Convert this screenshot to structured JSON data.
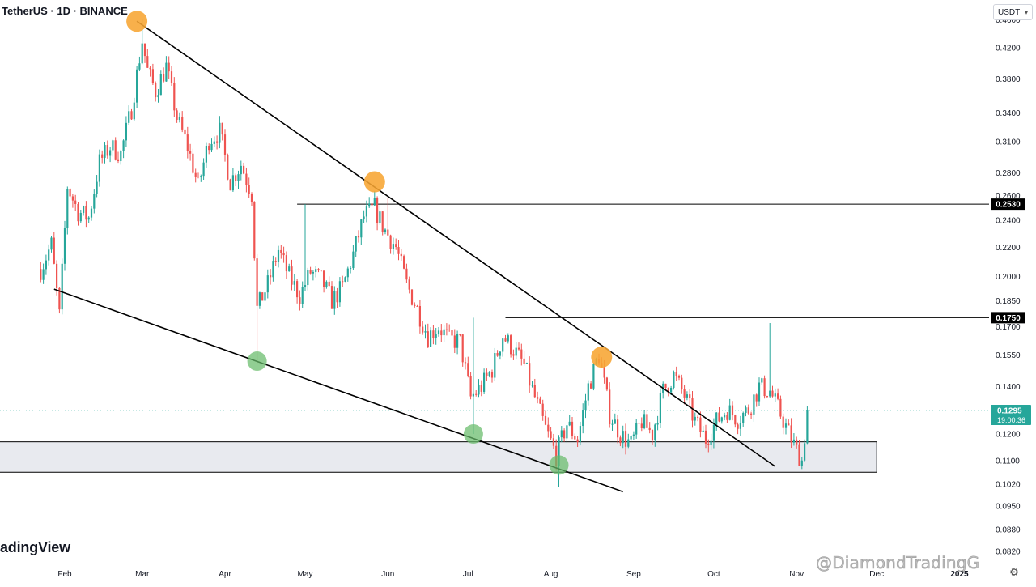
{
  "header": {
    "title": "TetherUS · 1D · BINANCE"
  },
  "currency": {
    "label": "USDT",
    "icon": "chevron-down-icon"
  },
  "logo": {
    "text": "adingView"
  },
  "watermark": {
    "text": "@DiamondTradingG"
  },
  "settings": {
    "icon": "gear-icon",
    "glyph": "⚙"
  },
  "colors": {
    "up": "#26a69a",
    "down": "#ef5350",
    "trendline": "#000000",
    "zone_fill": "#e8eaef",
    "peak_marker": "#f7a532",
    "low_marker": "#66bb6a",
    "price_tag": "#26a69a",
    "level_tag": "#000000"
  },
  "chart_data": {
    "type": "candlestick",
    "title": "TetherUS · 1D · BINANCE",
    "y_axis": {
      "scale": "log",
      "ylim": [
        0.0805,
        0.468
      ],
      "ticks": [
        "0.4600",
        "0.4200",
        "0.3800",
        "0.3400",
        "0.3100",
        "0.2800",
        "0.2600",
        "0.2400",
        "0.2200",
        "0.2000",
        "0.1850",
        "0.1700",
        "0.1550",
        "0.1400",
        "0.1200",
        "0.1100",
        "0.1020",
        "0.0950",
        "0.0880",
        "0.0820"
      ]
    },
    "x_axis": {
      "labels": [
        "Feb",
        "Mar",
        "Apr",
        "May",
        "Jun",
        "Jul",
        "Aug",
        "Sep",
        "Oct",
        "Nov",
        "Dec",
        "2025"
      ]
    },
    "close_path": [
      [
        "Jan 23",
        0.205
      ],
      [
        "Jan 27",
        0.222
      ],
      [
        "Jan 30",
        0.176
      ],
      [
        "Feb 2",
        0.268
      ],
      [
        "Feb 6",
        0.247
      ],
      [
        "Feb 10",
        0.242
      ],
      [
        "Feb 14",
        0.29
      ],
      [
        "Feb 18",
        0.305
      ],
      [
        "Feb 22",
        0.298
      ],
      [
        "Feb 26",
        0.345
      ],
      [
        "Mar 1",
        0.43
      ],
      [
        "Mar 3",
        0.39
      ],
      [
        "Mar 6",
        0.365
      ],
      [
        "Mar 10",
        0.395
      ],
      [
        "Mar 14",
        0.335
      ],
      [
        "Mar 18",
        0.305
      ],
      [
        "Mar 22",
        0.268
      ],
      [
        "Mar 26",
        0.312
      ],
      [
        "Mar 30",
        0.32
      ],
      [
        "Apr 3",
        0.272
      ],
      [
        "Apr 7",
        0.288
      ],
      [
        "Apr 11",
        0.262
      ],
      [
        "Apr 13",
        0.18
      ],
      [
        "Apr 17",
        0.195
      ],
      [
        "Apr 21",
        0.218
      ],
      [
        "Apr 25",
        0.2
      ],
      [
        "Apr 29",
        0.188
      ],
      [
        "May 3",
        0.203
      ],
      [
        "May 7",
        0.198
      ],
      [
        "May 11",
        0.185
      ],
      [
        "May 15",
        0.193
      ],
      [
        "May 19",
        0.215
      ],
      [
        "May 23",
        0.243
      ],
      [
        "May 27",
        0.25
      ],
      [
        "May 31",
        0.232
      ],
      [
        "Jun 4",
        0.22
      ],
      [
        "Jun 8",
        0.195
      ],
      [
        "Jun 12",
        0.18
      ],
      [
        "Jun 16",
        0.165
      ],
      [
        "Jun 20",
        0.17
      ],
      [
        "Jun 24",
        0.163
      ],
      [
        "Jun 28",
        0.162
      ],
      [
        "Jul 2",
        0.135
      ],
      [
        "Jul 6",
        0.14
      ],
      [
        "Jul 10",
        0.148
      ],
      [
        "Jul 14",
        0.165
      ],
      [
        "Jul 18",
        0.158
      ],
      [
        "Jul 22",
        0.15
      ],
      [
        "Jul 26",
        0.135
      ],
      [
        "Jul 30",
        0.122
      ],
      [
        "Aug 3",
        0.112
      ],
      [
        "Aug 7",
        0.124
      ],
      [
        "Aug 11",
        0.118
      ],
      [
        "Aug 15",
        0.14
      ],
      [
        "Aug 19",
        0.155
      ],
      [
        "Aug 23",
        0.128
      ],
      [
        "Aug 27",
        0.12
      ],
      [
        "Aug 31",
        0.116
      ],
      [
        "Sep 4",
        0.125
      ],
      [
        "Sep 8",
        0.12
      ],
      [
        "Sep 12",
        0.138
      ],
      [
        "Sep 16",
        0.145
      ],
      [
        "Sep 20",
        0.136
      ],
      [
        "Sep 24",
        0.125
      ],
      [
        "Sep 28",
        0.118
      ],
      [
        "Oct 2",
        0.125
      ],
      [
        "Oct 6",
        0.13
      ],
      [
        "Oct 10",
        0.126
      ],
      [
        "Oct 14",
        0.13
      ],
      [
        "Oct 18",
        0.14
      ],
      [
        "Oct 22",
        0.138
      ],
      [
        "Oct 26",
        0.128
      ],
      [
        "Oct 30",
        0.118
      ],
      [
        "Nov 3",
        0.11
      ],
      [
        "Nov 5",
        0.1295
      ]
    ],
    "wicks": [
      {
        "date": "Mar 1",
        "high": 0.462
      },
      {
        "date": "Apr 13",
        "low": 0.151
      },
      {
        "date": "May 1",
        "high": 0.253
      },
      {
        "date": "Jun 1",
        "high": 0.258
      },
      {
        "date": "Jul 3",
        "high": 0.175,
        "low": 0.12
      },
      {
        "date": "Aug 4",
        "low": 0.101
      },
      {
        "date": "Oct 22",
        "high": 0.172
      }
    ],
    "trendlines": [
      {
        "name": "descending resistance",
        "from": [
          "Feb 28",
          0.458
        ],
        "to": [
          "Oct 24",
          0.108
        ]
      },
      {
        "name": "support",
        "from": [
          "Jan 28",
          0.192
        ],
        "to": [
          "Aug 28",
          0.0995
        ]
      }
    ],
    "horizontal_levels": [
      {
        "value": 0.253,
        "label": "0.2530",
        "from": "Apr 28"
      },
      {
        "value": 0.175,
        "label": "0.1750",
        "from": "Jul 15"
      }
    ],
    "zone": {
      "top": 0.117,
      "bottom": 0.106,
      "to": "Dec 1"
    },
    "peak_markers": [
      [
        "Feb 28",
        0.458
      ],
      [
        "May 27",
        0.272
      ],
      [
        "Aug 20",
        0.154
      ]
    ],
    "low_markers": [
      [
        "Apr 13",
        0.152
      ],
      [
        "Jul 3",
        0.12
      ],
      [
        "Aug 4",
        0.1085
      ]
    ],
    "last_price": {
      "value": "0.1295",
      "countdown": "19:00:36"
    }
  }
}
